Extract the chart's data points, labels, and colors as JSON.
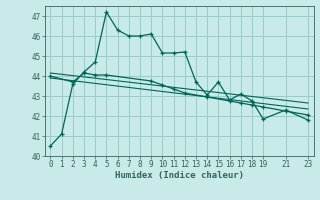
{
  "xlabel": "Humidex (Indice chaleur)",
  "background_color": "#c8eae8",
  "grid_color": "#98ccc8",
  "line_color": "#006655",
  "ylim": [
    40,
    47.5
  ],
  "xlim": [
    -0.5,
    23.5
  ],
  "yticks": [
    40,
    41,
    42,
    43,
    44,
    45,
    46,
    47
  ],
  "xticks": [
    0,
    1,
    2,
    3,
    4,
    5,
    6,
    7,
    8,
    9,
    10,
    11,
    12,
    13,
    14,
    15,
    16,
    17,
    18,
    19,
    21,
    23
  ],
  "series1_x": [
    0,
    1,
    2,
    3,
    4,
    5,
    6,
    7,
    8,
    9,
    10,
    11,
    12,
    13,
    14,
    15,
    16,
    17,
    18,
    19,
    21,
    23
  ],
  "series1_y": [
    40.5,
    41.1,
    43.6,
    44.2,
    44.7,
    47.2,
    46.3,
    46.0,
    46.0,
    46.1,
    45.15,
    45.15,
    45.2,
    43.7,
    43.05,
    43.7,
    42.8,
    43.1,
    42.75,
    41.85,
    42.3,
    41.8
  ],
  "series2_x": [
    0,
    2,
    3,
    4,
    5,
    9,
    10,
    11,
    12,
    14,
    16,
    17,
    18,
    19,
    21,
    23
  ],
  "series2_y": [
    44.0,
    43.7,
    44.15,
    44.05,
    44.05,
    43.75,
    43.55,
    43.35,
    43.15,
    42.95,
    42.75,
    42.65,
    42.55,
    42.45,
    42.25,
    42.05
  ],
  "series3_x": [
    0,
    23
  ],
  "series3_y": [
    44.15,
    42.65
  ],
  "series4_x": [
    0,
    23
  ],
  "series4_y": [
    43.9,
    42.35
  ]
}
